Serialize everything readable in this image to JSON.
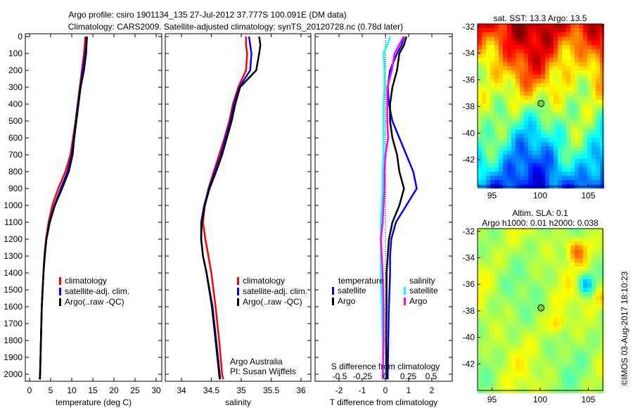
{
  "title_line1": "Argo profile: csiro 1901134_135 27-Jul-2012 37.777S 100.091E (DM data)",
  "title_line2": "Climatology: CARS2009. Satellite-adjusted climatology: synTS_20120728.nc (0.78d later)",
  "copyright": "©IMOS 03-Aug-2017 18:10:23",
  "colors": {
    "climatology": "#ff0000",
    "satellite": "#0000ff",
    "argo": "#000000",
    "sal_satellite": "#00ffff",
    "sal_argo": "#ff00ff"
  },
  "chart_data": [
    {
      "type": "line",
      "name": "temperature",
      "xlabel": "temperature (deg C)",
      "xlim": [
        -1,
        31.3
      ],
      "ylim": [
        0,
        2040
      ],
      "y_reversed": true,
      "xticks": [
        0,
        5,
        10,
        15,
        20,
        25,
        30
      ],
      "yticks": [
        0,
        100,
        200,
        300,
        400,
        500,
        600,
        700,
        800,
        900,
        1000,
        1100,
        1200,
        1300,
        1400,
        1500,
        1600,
        1700,
        1800,
        1900,
        2000
      ],
      "legend": [
        "climatology",
        "satellite-adj. clim.",
        "Argo(..raw -QC)"
      ],
      "depth": [
        0,
        50,
        100,
        200,
        300,
        400,
        500,
        600,
        700,
        800,
        900,
        1000,
        1100,
        1200,
        1300,
        1400,
        1600,
        1800,
        2000,
        2030
      ],
      "series": [
        {
          "name": "climatology",
          "color": "climatology",
          "values": [
            13.2,
            13.1,
            12.9,
            12.4,
            11.9,
            11.4,
            10.9,
            10.3,
            9.7,
            8.5,
            6.8,
            5.4,
            4.5,
            3.9,
            3.5,
            3.3,
            2.9,
            2.7,
            2.5,
            2.4
          ]
        },
        {
          "name": "satellite-adj. clim.",
          "color": "satellite",
          "values": [
            13.5,
            13.4,
            13.2,
            12.6,
            12.0,
            11.5,
            11.0,
            10.5,
            10.0,
            9.0,
            7.4,
            5.9,
            4.7,
            4.0,
            3.6,
            3.3,
            2.9,
            2.7,
            2.5,
            2.4
          ]
        },
        {
          "name": "Argo",
          "color": "argo",
          "values": [
            13.6,
            13.5,
            13.4,
            12.9,
            12.1,
            11.6,
            11.1,
            10.6,
            10.2,
            9.3,
            7.7,
            6.0,
            4.8,
            4.0,
            3.6,
            3.3,
            2.9,
            2.7,
            2.5,
            2.5
          ]
        }
      ]
    },
    {
      "type": "line",
      "name": "salinity",
      "xlabel": "salinity",
      "xlim": [
        33.7,
        36.1
      ],
      "ylim": [
        0,
        2040
      ],
      "y_reversed": true,
      "xticks": [
        34,
        34.5,
        35,
        35.5,
        36
      ],
      "legend": [
        "climatology",
        "satellite-adj. clim.",
        "Argo(..raw -QC)"
      ],
      "annotation": [
        "Argo Australia",
        "PI: Susan Wijffels"
      ],
      "depth": [
        0,
        50,
        100,
        200,
        300,
        400,
        500,
        600,
        700,
        800,
        900,
        1000,
        1100,
        1200,
        1300,
        1400,
        1600,
        1800,
        2000,
        2030
      ],
      "series": [
        {
          "name": "climatology",
          "color": "climatology",
          "values": [
            35.08,
            35.08,
            35.1,
            35.08,
            34.95,
            34.86,
            34.8,
            34.72,
            34.63,
            34.54,
            34.45,
            34.39,
            34.36,
            34.4,
            34.45,
            34.5,
            34.57,
            34.63,
            34.68,
            34.7
          ]
        },
        {
          "name": "satellite-adj. clim.",
          "color": "satellite",
          "values": [
            35.13,
            35.15,
            35.17,
            35.15,
            34.97,
            34.88,
            34.82,
            34.74,
            34.66,
            34.56,
            34.46,
            34.38,
            34.33,
            34.33,
            34.36,
            34.42,
            34.52,
            34.58,
            34.64,
            34.65
          ]
        },
        {
          "name": "Argo",
          "color": "argo",
          "values": [
            35.3,
            35.32,
            35.3,
            35.25,
            34.98,
            34.9,
            34.84,
            34.76,
            34.68,
            34.58,
            34.47,
            34.39,
            34.34,
            34.33,
            34.36,
            34.42,
            34.51,
            34.57,
            34.63,
            34.64
          ]
        }
      ]
    },
    {
      "type": "line",
      "name": "differences",
      "xlabel": "T difference from climatology",
      "x2label": "S difference from climatology",
      "xlim": [
        -3,
        3
      ],
      "x2lim": [
        -0.75,
        0.75
      ],
      "ylim": [
        0,
        2040
      ],
      "y_reversed": true,
      "xticks": [
        -2,
        -1,
        0,
        1,
        2
      ],
      "x2ticks": [
        -0.5,
        -0.25,
        0,
        0.25,
        0.5
      ],
      "legend_titles": [
        "temperature",
        "salinity"
      ],
      "legend": [
        "satellite",
        "Argo",
        "satellite",
        "Argo"
      ],
      "depth": [
        0,
        50,
        100,
        200,
        300,
        400,
        500,
        600,
        700,
        800,
        900,
        1000,
        1100,
        1200,
        1300,
        1400,
        1600,
        1800,
        2000,
        2030
      ],
      "series": [
        {
          "name": "temperature satellite",
          "axis": "T",
          "color": "satellite",
          "values": [
            0.8,
            0.7,
            0.5,
            0.2,
            0.1,
            0.15,
            0.3,
            0.6,
            0.9,
            1.2,
            1.35,
            0.9,
            0.45,
            0.25,
            0.2,
            0.2,
            0.15,
            0.12,
            0.1,
            0.1
          ]
        },
        {
          "name": "temperature Argo",
          "axis": "T",
          "color": "argo",
          "values": [
            0.9,
            0.8,
            0.6,
            0.5,
            0.3,
            0.2,
            0.2,
            0.3,
            0.5,
            0.6,
            0.8,
            0.6,
            0.3,
            0.15,
            0.1,
            0.05,
            0.05,
            0.03,
            0.05,
            0.05
          ]
        },
        {
          "name": "salinity satellite",
          "axis": "S",
          "color": "sal_satellite",
          "values": [
            0.05,
            0.02,
            -0.02,
            -0.01,
            -0.01,
            -0.02,
            -0.02,
            -0.02,
            -0.02,
            -0.03,
            -0.03,
            -0.04,
            -0.05,
            -0.05,
            -0.05,
            -0.05,
            -0.04,
            -0.03,
            -0.02,
            -0.02
          ]
        },
        {
          "name": "salinity Argo",
          "axis": "S",
          "color": "sal_argo",
          "values": [
            0.2,
            0.15,
            0.1,
            0.07,
            0.02,
            0.02,
            0.02,
            0.03,
            0.0,
            -0.01,
            -0.01,
            -0.02,
            -0.03,
            -0.05,
            -0.04,
            -0.03,
            -0.02,
            -0.02,
            -0.03,
            -0.03
          ]
        }
      ]
    },
    {
      "type": "heatmap",
      "name": "sst-map",
      "title": "sat. SST: 13.3 Argo: 13.5",
      "xlim": [
        93.5,
        106.5
      ],
      "ylim": [
        -44,
        -31.8
      ],
      "xticks": [
        95,
        100,
        105
      ],
      "yticks": [
        -32,
        -34,
        -36,
        -38,
        -40,
        -42
      ],
      "float_position": [
        100.091,
        -37.777
      ]
    },
    {
      "type": "heatmap",
      "name": "sla-map",
      "title": [
        "Altim. SLA: 0.1",
        "Argo h1000: 0.01 h2000: 0.038"
      ],
      "xlim": [
        93.5,
        106.5
      ],
      "ylim": [
        -44,
        -31.8
      ],
      "xticks": [
        95,
        100,
        105
      ],
      "yticks": [
        -32,
        -34,
        -36,
        -38,
        -40,
        -42
      ],
      "float_position": [
        100.091,
        -37.777
      ]
    }
  ]
}
